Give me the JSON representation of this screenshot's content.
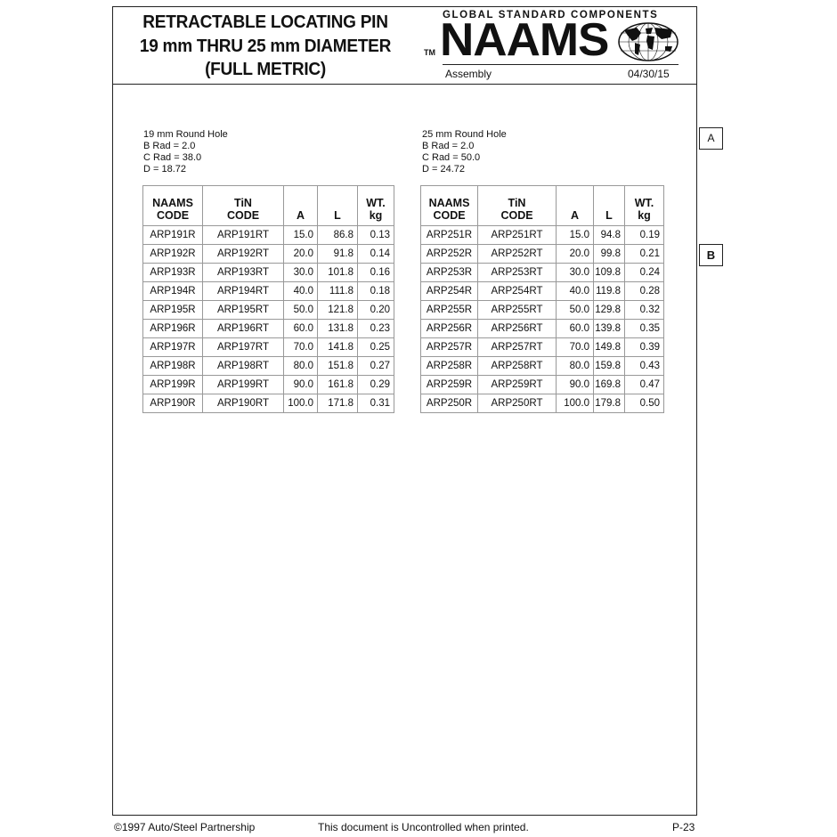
{
  "header": {
    "title_lines": [
      "RETRACTABLE LOCATING PIN",
      "19 mm THRU 25 mm DIAMETER",
      "(FULL METRIC)"
    ],
    "logo": {
      "tagline": "GLOBAL STANDARD COMPONENTS",
      "brand": "NAAMS",
      "tm": "TM",
      "icon": "globe-icon"
    },
    "category": "Assembly",
    "date": "04/30/15"
  },
  "side_tabs": [
    "A",
    "B"
  ],
  "tables": [
    {
      "specs": [
        "19 mm Round Hole",
        "B Rad = 2.0",
        "C Rad = 38.0",
        "D = 18.72"
      ],
      "columns": [
        [
          "NAAMS",
          "CODE"
        ],
        [
          "TiN",
          "CODE"
        ],
        [
          "A"
        ],
        [
          "L"
        ],
        [
          "WT.",
          "kg"
        ]
      ],
      "rows": [
        [
          "ARP191R",
          "ARP191RT",
          "15.0",
          "86.8",
          "0.13"
        ],
        [
          "ARP192R",
          "ARP192RT",
          "20.0",
          "91.8",
          "0.14"
        ],
        [
          "ARP193R",
          "ARP193RT",
          "30.0",
          "101.8",
          "0.16"
        ],
        [
          "ARP194R",
          "ARP194RT",
          "40.0",
          "111.8",
          "0.18"
        ],
        [
          "ARP195R",
          "ARP195RT",
          "50.0",
          "121.8",
          "0.20"
        ],
        [
          "ARP196R",
          "ARP196RT",
          "60.0",
          "131.8",
          "0.23"
        ],
        [
          "ARP197R",
          "ARP197RT",
          "70.0",
          "141.8",
          "0.25"
        ],
        [
          "ARP198R",
          "ARP198RT",
          "80.0",
          "151.8",
          "0.27"
        ],
        [
          "ARP199R",
          "ARP199RT",
          "90.0",
          "161.8",
          "0.29"
        ],
        [
          "ARP190R",
          "ARP190RT",
          "100.0",
          "171.8",
          "0.31"
        ]
      ]
    },
    {
      "specs": [
        "25 mm Round Hole",
        "B Rad = 2.0",
        "C Rad = 50.0",
        "D = 24.72"
      ],
      "columns": [
        [
          "NAAMS",
          "CODE"
        ],
        [
          "TiN",
          "CODE"
        ],
        [
          "A"
        ],
        [
          "L"
        ],
        [
          "WT.",
          "kg"
        ]
      ],
      "rows": [
        [
          "ARP251R",
          "ARP251RT",
          "15.0",
          "94.8",
          "0.19"
        ],
        [
          "ARP252R",
          "ARP252RT",
          "20.0",
          "99.8",
          "0.21"
        ],
        [
          "ARP253R",
          "ARP253RT",
          "30.0",
          "109.8",
          "0.24"
        ],
        [
          "ARP254R",
          "ARP254RT",
          "40.0",
          "119.8",
          "0.28"
        ],
        [
          "ARP255R",
          "ARP255RT",
          "50.0",
          "129.8",
          "0.32"
        ],
        [
          "ARP256R",
          "ARP256RT",
          "60.0",
          "139.8",
          "0.35"
        ],
        [
          "ARP257R",
          "ARP257RT",
          "70.0",
          "149.8",
          "0.39"
        ],
        [
          "ARP258R",
          "ARP258RT",
          "80.0",
          "159.8",
          "0.43"
        ],
        [
          "ARP259R",
          "ARP259RT",
          "90.0",
          "169.8",
          "0.47"
        ],
        [
          "ARP250R",
          "ARP250RT",
          "100.0",
          "179.8",
          "0.50"
        ]
      ]
    }
  ],
  "footer": {
    "copyright": "©1997 Auto/Steel Partnership",
    "notice": "This document is Uncontrolled when printed.",
    "page": "P-23"
  }
}
